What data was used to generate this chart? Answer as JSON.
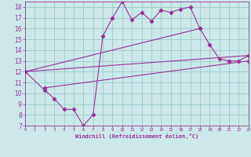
{
  "title": "",
  "xlabel": "Windchill (Refroidissement éolien,°C)",
  "bg_color": "#cce8e8",
  "grid_color": "#99cccc",
  "line_color": "#993399",
  "spine_color": "#993399",
  "xmin": 0,
  "xmax": 23,
  "ymin": 7,
  "ymax": 18.5,
  "xticks": [
    0,
    1,
    2,
    3,
    4,
    5,
    6,
    7,
    8,
    9,
    10,
    11,
    12,
    13,
    14,
    15,
    16,
    17,
    18,
    19,
    20,
    21,
    22,
    23
  ],
  "yticks": [
    7,
    8,
    9,
    10,
    11,
    12,
    13,
    14,
    15,
    16,
    17,
    18
  ],
  "line1_x": [
    0,
    2,
    3,
    4,
    5,
    6,
    7,
    8,
    9,
    10,
    11,
    12,
    13,
    14,
    15,
    16,
    17,
    18,
    19,
    20,
    21,
    22,
    23
  ],
  "line1_y": [
    12.0,
    10.3,
    9.5,
    8.5,
    8.5,
    7.0,
    8.0,
    15.3,
    17.0,
    18.5,
    16.8,
    17.5,
    16.7,
    17.7,
    17.5,
    17.8,
    18.0,
    16.0,
    14.5,
    13.2,
    13.0,
    13.0,
    13.5
  ],
  "line2_x": [
    0,
    18
  ],
  "line2_y": [
    12.0,
    16.0
  ],
  "line3_x": [
    0,
    23
  ],
  "line3_y": [
    12.0,
    13.5
  ],
  "line4_x": [
    2,
    23
  ],
  "line4_y": [
    10.5,
    13.0
  ]
}
